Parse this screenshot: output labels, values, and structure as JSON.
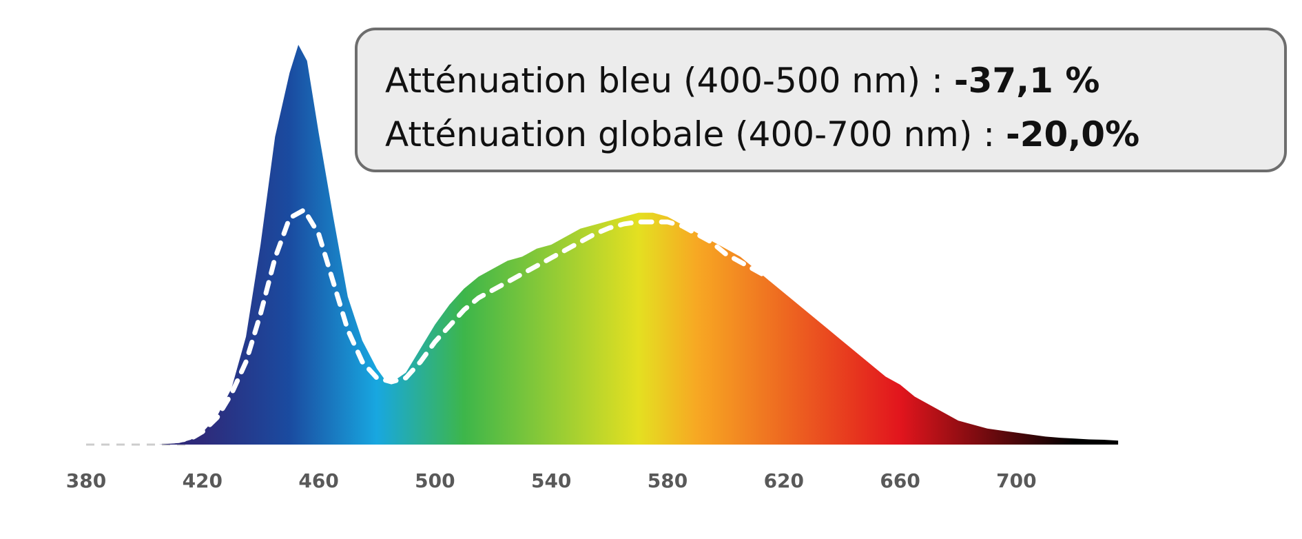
{
  "chart_data": {
    "type": "area",
    "xlabel": "",
    "ylabel": "",
    "x_ticks": [
      "380",
      "420",
      "460",
      "500",
      "540",
      "580",
      "620",
      "660",
      "700"
    ],
    "xlim": [
      380,
      735
    ],
    "ylim": [
      0,
      1
    ],
    "grid": false,
    "series": [
      {
        "style": "filled spectrum",
        "x": [
          380,
          405,
          412,
          416,
          420,
          425,
          430,
          435,
          440,
          445,
          450,
          453,
          456,
          460,
          465,
          470,
          475,
          480,
          483,
          486,
          490,
          495,
          500,
          505,
          510,
          515,
          520,
          525,
          530,
          535,
          540,
          545,
          550,
          555,
          560,
          565,
          570,
          575,
          580,
          585,
          590,
          595,
          600,
          605,
          610,
          615,
          620,
          625,
          630,
          635,
          640,
          645,
          650,
          655,
          660,
          665,
          670,
          675,
          680,
          685,
          690,
          695,
          700,
          705,
          710,
          715,
          720,
          725,
          730,
          735
        ],
        "y": [
          0,
          0,
          0.004,
          0.012,
          0.03,
          0.07,
          0.14,
          0.27,
          0.5,
          0.77,
          0.93,
          1.0,
          0.96,
          0.78,
          0.57,
          0.37,
          0.26,
          0.19,
          0.16,
          0.16,
          0.18,
          0.24,
          0.3,
          0.35,
          0.39,
          0.42,
          0.44,
          0.46,
          0.47,
          0.49,
          0.5,
          0.52,
          0.54,
          0.55,
          0.56,
          0.57,
          0.58,
          0.58,
          0.57,
          0.55,
          0.53,
          0.51,
          0.49,
          0.47,
          0.44,
          0.41,
          0.38,
          0.35,
          0.32,
          0.29,
          0.26,
          0.23,
          0.2,
          0.17,
          0.15,
          0.12,
          0.1,
          0.08,
          0.06,
          0.05,
          0.04,
          0.035,
          0.03,
          0.025,
          0.02,
          0.017,
          0.015,
          0.013,
          0.012,
          0.01
        ]
      },
      {
        "style": "dashed white",
        "x": [
          380,
          405,
          410,
          416,
          420,
          425,
          430,
          435,
          440,
          445,
          450,
          455,
          460,
          465,
          470,
          475,
          480,
          485,
          490,
          495,
          500,
          505,
          510,
          515,
          520,
          525,
          530,
          535,
          540,
          545,
          550,
          555,
          560,
          565,
          570,
          575,
          580,
          585,
          590,
          595,
          600,
          605,
          610,
          615,
          620,
          625,
          630,
          635,
          640,
          645,
          650,
          655,
          660,
          665,
          670,
          675,
          680,
          685,
          690,
          695,
          700,
          705,
          710,
          715,
          720,
          725,
          730,
          735
        ],
        "y": [
          0,
          0,
          0.002,
          0.008,
          0.025,
          0.06,
          0.12,
          0.2,
          0.32,
          0.46,
          0.56,
          0.58,
          0.52,
          0.4,
          0.28,
          0.2,
          0.16,
          0.15,
          0.16,
          0.2,
          0.25,
          0.29,
          0.33,
          0.36,
          0.38,
          0.4,
          0.42,
          0.44,
          0.46,
          0.48,
          0.5,
          0.52,
          0.535,
          0.545,
          0.55,
          0.55,
          0.55,
          0.54,
          0.52,
          0.5,
          0.47,
          0.45,
          0.43,
          0.41,
          0.39,
          0.36,
          0.33,
          0.3,
          0.27,
          0.24,
          0.21,
          0.18,
          0.155,
          0.13,
          0.11,
          0.09,
          0.075,
          0.065,
          0.055,
          0.047,
          0.04,
          0.035,
          0.03,
          0.025,
          0.02,
          0.017,
          0.015,
          0.013
        ]
      }
    ],
    "annotations": [
      {
        "label": "Atténuation bleu (400-500 nm) : ",
        "value": "-37,1 %"
      },
      {
        "label": "Atténuation globale (400-700  nm) : ",
        "value": "-20,0%"
      }
    ],
    "colors": {
      "spectrum_stops": [
        "#2e2a7a",
        "#1a4ba0",
        "#18a7e0",
        "#3db64a",
        "#e4e021",
        "#f7a823",
        "#e2151d",
        "#000000"
      ],
      "dashed_line": "#ffffff",
      "baseline_dash": "#cccccc",
      "tick_text": "#595959",
      "legend_background": "#ececec",
      "legend_border": "#6d6d6d"
    }
  }
}
